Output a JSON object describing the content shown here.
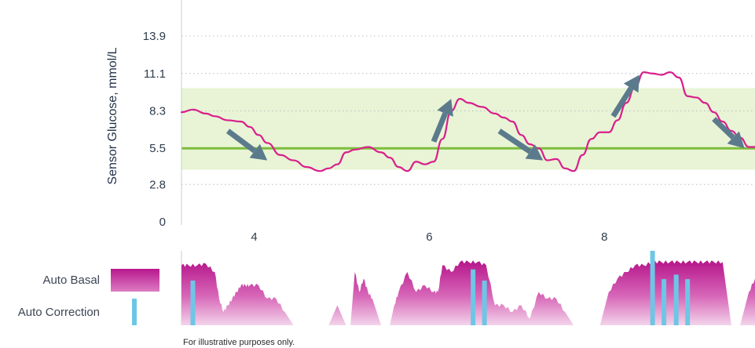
{
  "chart_data": [
    {
      "type": "line",
      "ylabel": "Sensor Glucose, mmol/L",
      "xlabel": "",
      "y_ticks": [
        "0",
        "2.8",
        "5.5",
        "8.3",
        "11.1",
        "13.9"
      ],
      "y_tick_values": [
        0,
        2.8,
        5.5,
        8.3,
        11.1,
        13.9
      ],
      "x_ticks": [
        "4",
        "6",
        "8"
      ],
      "x_tick_values": [
        4,
        6,
        8
      ],
      "xlim": [
        3.17,
        9.72
      ],
      "ylim": [
        0,
        16.6
      ],
      "grid": "horizontal-dotted",
      "target_range": [
        3.9,
        10.0
      ],
      "target_line": 5.5,
      "series": [
        {
          "x": [
            3.17,
            3.3,
            3.45,
            3.55,
            3.7,
            3.85,
            3.95,
            4.05,
            4.15,
            4.3,
            4.45,
            4.6,
            4.75,
            4.85,
            4.95,
            5.05,
            5.15,
            5.3,
            5.45,
            5.55,
            5.65,
            5.75,
            5.85,
            5.95,
            6.05,
            6.15,
            6.25,
            6.35,
            6.45,
            6.6,
            6.75,
            6.85,
            6.95,
            7.05,
            7.15,
            7.25,
            7.35,
            7.45,
            7.55,
            7.65,
            7.75,
            7.85,
            7.95,
            8.05,
            8.15,
            8.25,
            8.35,
            8.45,
            8.55,
            8.65,
            8.75,
            8.85,
            8.95,
            9.05,
            9.15,
            9.25,
            9.35,
            9.45,
            9.55,
            9.65,
            9.72
          ],
          "values": [
            8.2,
            8.4,
            8.1,
            7.9,
            7.6,
            7.5,
            7.1,
            6.5,
            5.9,
            5.0,
            4.6,
            4.1,
            3.8,
            4.0,
            4.3,
            5.2,
            5.4,
            5.6,
            5.2,
            4.8,
            4.1,
            3.8,
            4.5,
            4.3,
            4.5,
            6.2,
            8.3,
            9.2,
            8.9,
            8.6,
            8.1,
            7.8,
            7.5,
            6.5,
            5.8,
            5.5,
            4.6,
            4.7,
            4.0,
            3.8,
            5.0,
            6.2,
            6.7,
            6.7,
            7.6,
            8.9,
            10.1,
            11.2,
            11.1,
            11.0,
            11.2,
            10.8,
            9.4,
            9.3,
            8.9,
            8.2,
            7.5,
            6.8,
            6.3,
            5.6,
            5.6
          ]
        }
      ],
      "trend_arrows": [
        {
          "from": [
            3.7,
            6.8
          ],
          "to": [
            4.15,
            4.6
          ]
        },
        {
          "from": [
            6.05,
            6.0
          ],
          "to": [
            6.25,
            9.2
          ]
        },
        {
          "from": [
            6.8,
            6.8
          ],
          "to": [
            7.3,
            4.6
          ]
        },
        {
          "from": [
            8.1,
            7.9
          ],
          "to": [
            8.4,
            11.0
          ]
        },
        {
          "from": [
            9.25,
            7.7
          ],
          "to": [
            9.6,
            5.5
          ]
        }
      ],
      "colors": {
        "line": "#d91e8c",
        "target_band": "#e8f4d5",
        "target_line": "#7dbd3c",
        "arrow": "#5b7b8d",
        "grid": "#b8bec4"
      }
    },
    {
      "type": "area",
      "xlim": [
        3.17,
        9.72
      ],
      "legend": [
        {
          "label": "Auto Basal",
          "color": "#c23d9e"
        },
        {
          "label": "Auto Correction",
          "color": "#6ec6e6"
        }
      ],
      "auto_basal": {
        "x": [
          3.17,
          3.25,
          3.35,
          3.45,
          3.55,
          3.6,
          3.65,
          3.7,
          3.75,
          3.8,
          3.85,
          3.9,
          3.95,
          4.05,
          4.15,
          4.25,
          4.35,
          4.45,
          4.55,
          4.6,
          4.65,
          4.75,
          4.85,
          4.95,
          5.05,
          5.1,
          5.15,
          5.2,
          5.25,
          5.3,
          5.35,
          5.45,
          5.55,
          5.6,
          5.65,
          5.75,
          5.85,
          5.95,
          6.05,
          6.1,
          6.15,
          6.25,
          6.35,
          6.45,
          6.55,
          6.65,
          6.75,
          6.85,
          6.95,
          7.05,
          7.15,
          7.25,
          7.35,
          7.45,
          7.55,
          7.65,
          7.75,
          7.85,
          7.95,
          8.05,
          8.15,
          8.25,
          8.35,
          8.45,
          8.55,
          8.65,
          8.75,
          8.85,
          8.95,
          9.05,
          9.15,
          9.25,
          9.35,
          9.45,
          9.55,
          9.65,
          9.72
        ],
        "values": [
          0.9,
          0.9,
          0.9,
          0.92,
          0.8,
          0.4,
          0.2,
          0.3,
          0.4,
          0.5,
          0.6,
          0.6,
          0.6,
          0.6,
          0.4,
          0.4,
          0.2,
          0.0,
          0.0,
          0.0,
          0.0,
          0.0,
          0.0,
          0.3,
          0.0,
          0.0,
          0.8,
          0.5,
          0.7,
          0.5,
          0.4,
          0.0,
          0.0,
          0.3,
          0.5,
          0.8,
          0.5,
          0.6,
          0.5,
          0.5,
          0.9,
          0.8,
          0.95,
          0.95,
          0.95,
          0.9,
          0.3,
          0.3,
          0.2,
          0.3,
          0.1,
          0.5,
          0.4,
          0.4,
          0.2,
          0.0,
          0.0,
          0.0,
          0.0,
          0.5,
          0.7,
          0.8,
          0.9,
          0.9,
          0.95,
          0.95,
          0.95,
          0.95,
          0.95,
          0.95,
          0.95,
          0.95,
          0.95,
          0.0,
          0.0,
          0.5,
          0.7
        ]
      },
      "auto_correction": {
        "x": [
          3.3,
          6.5,
          6.63,
          8.55,
          8.68,
          8.82,
          8.95
        ],
        "values": [
          0.6,
          0.75,
          0.6,
          1.0,
          0.62,
          0.68,
          0.62
        ]
      }
    }
  ],
  "footnote": "For illustrative purposes only."
}
